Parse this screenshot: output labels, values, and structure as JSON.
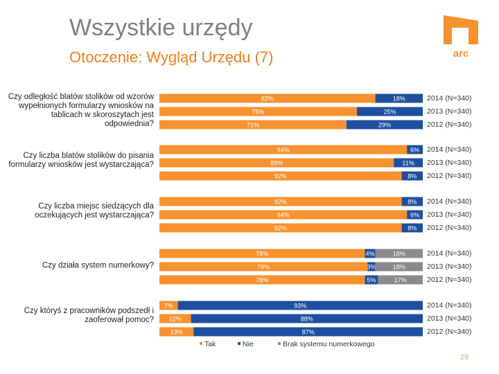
{
  "header": {
    "title": "Wszystkie urzędy",
    "subtitle": "Otoczenie: Wygląd Urzędu (7)",
    "logo": "arc",
    "page_number": "29"
  },
  "chart_data": {
    "type": "stacked-bar-horizontal",
    "groups": [
      "Czy odległość blatów stolików od wzorów wypełnionych formularzy wniosków na tablicach w skoroszytach jest odpowiednia?",
      "Czy liczba blatów stolików do pisania formularzy wniosków jest wystarczająca?",
      "Czy liczba miejsc siedzących dla oczekujących jest wystarczająca?",
      "Czy działa system numerkowy?",
      "Czy któryś z pracowników podszedł i zaoferował pomoc?"
    ],
    "categories": [
      "2014 (N=340)",
      "2013 (N=340)",
      "2012 (N=340)",
      "2014 (N=340)",
      "2013 (N=340)",
      "2012 (N=340)",
      "2014 (N=340)",
      "2013 (N=340)",
      "2012 (N=340)",
      "2014 (N=340)",
      "2013 (N=340)",
      "2012 (N=340)",
      "2014 (N=340)",
      "2013 (N=340)",
      "2012 (N=340)"
    ],
    "xlim": [
      0,
      100
    ],
    "series": [
      {
        "name": "Tak",
        "color": "#f7922f",
        "values": [
          82,
          75,
          71,
          94,
          89,
          92,
          92,
          94,
          92,
          78,
          79,
          78,
          7,
          12,
          13
        ],
        "value_labels": [
          "82%",
          "75%",
          "71%",
          "94%",
          "89%",
          "92%",
          "92%",
          "94%",
          "92%",
          "78%",
          "79%",
          "78%",
          "7%",
          "12%",
          "13%"
        ]
      },
      {
        "name": "Nie",
        "color": "#1f4f9e",
        "values": [
          18,
          25,
          29,
          6,
          11,
          8,
          8,
          6,
          8,
          4,
          3,
          5,
          93,
          88,
          87
        ],
        "value_labels": [
          "18%",
          "25%",
          "29%",
          "6%",
          "11%",
          "8%",
          "8%",
          "6%",
          "8%",
          "4%",
          "3%",
          "5%",
          "93%",
          "88%",
          "87%"
        ]
      },
      {
        "name": "Brak systemu numerkowego",
        "color": "#8a8a8a",
        "values": [
          null,
          null,
          null,
          null,
          null,
          null,
          null,
          null,
          null,
          18,
          18,
          17,
          null,
          null,
          null
        ],
        "value_labels": [
          null,
          null,
          null,
          null,
          null,
          null,
          null,
          null,
          null,
          "18%",
          "18%",
          "17%",
          null,
          null,
          null
        ]
      }
    ]
  }
}
